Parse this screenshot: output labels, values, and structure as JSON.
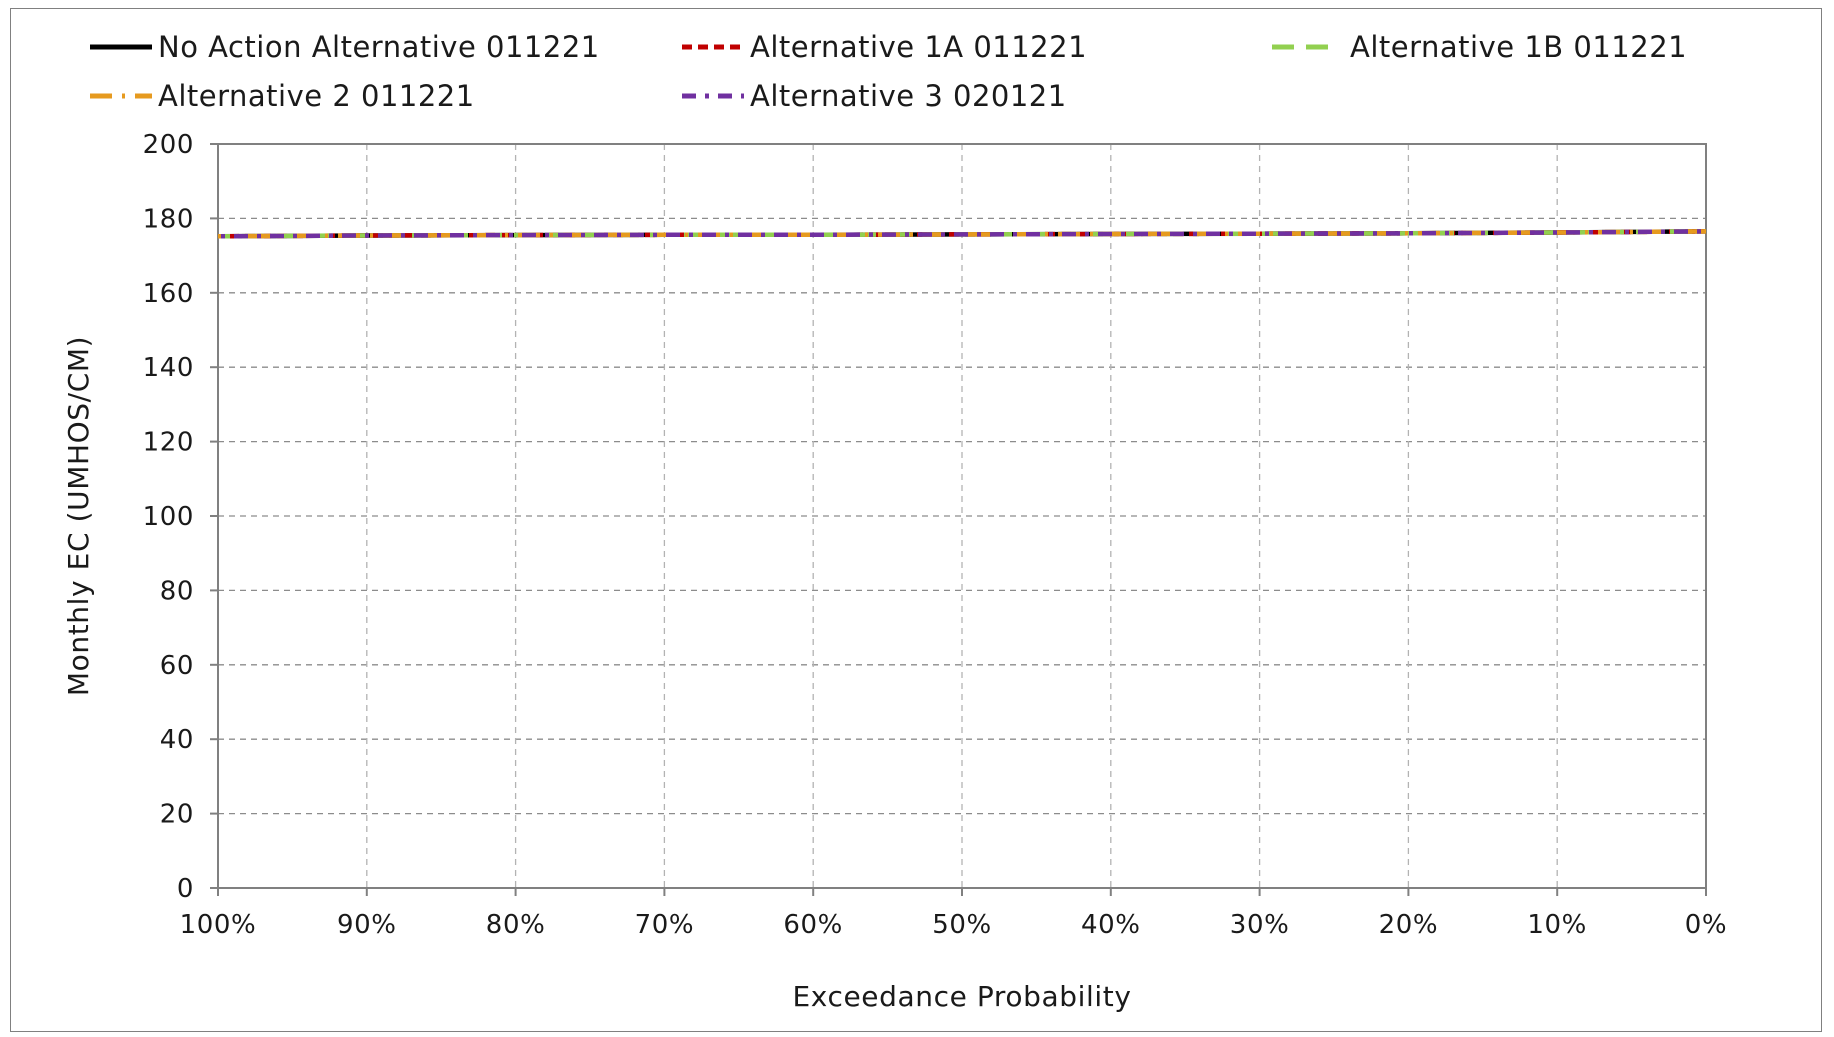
{
  "chart_data": {
    "type": "line",
    "title": "",
    "xlabel": "Exceedance Probability",
    "ylabel": "Monthly EC (UMHOS/CM)",
    "xlim": [
      100,
      0
    ],
    "ylim": [
      0,
      200
    ],
    "x_ticks": [
      "100%",
      "90%",
      "80%",
      "70%",
      "60%",
      "50%",
      "40%",
      "30%",
      "20%",
      "10%",
      "0%"
    ],
    "y_ticks": [
      "0",
      "20",
      "40",
      "60",
      "80",
      "100",
      "120",
      "140",
      "160",
      "180",
      "200"
    ],
    "grid": true,
    "legend_position": "top",
    "x": [
      100,
      90,
      80,
      70,
      60,
      50,
      40,
      30,
      20,
      10,
      0
    ],
    "series": [
      {
        "name": "No Action Alternative 011221",
        "color": "#000000",
        "dash": "solid",
        "values": [
          175.2,
          175.4,
          175.5,
          175.6,
          175.6,
          175.7,
          175.8,
          175.9,
          176.0,
          176.2,
          176.5
        ]
      },
      {
        "name": "Alternative 1A 011221",
        "color": "#c00000",
        "dash": "dashed",
        "values": [
          175.2,
          175.4,
          175.5,
          175.6,
          175.6,
          175.7,
          175.8,
          175.9,
          176.0,
          176.2,
          176.5
        ]
      },
      {
        "name": "Alternative 1B 011221",
        "color": "#92d050",
        "dash": "longdash",
        "values": [
          175.2,
          175.4,
          175.5,
          175.6,
          175.6,
          175.7,
          175.8,
          175.9,
          176.0,
          176.2,
          176.5
        ]
      },
      {
        "name": "Alternative 2 011221",
        "color": "#e69a1f",
        "dash": "longdashdot",
        "values": [
          175.2,
          175.4,
          175.5,
          175.6,
          175.6,
          175.7,
          175.8,
          175.9,
          176.0,
          176.2,
          176.5
        ]
      },
      {
        "name": "Alternative 3 020121",
        "color": "#7030a0",
        "dash": "dashdot",
        "values": [
          175.2,
          175.4,
          175.5,
          175.6,
          175.6,
          175.7,
          175.8,
          175.9,
          176.0,
          176.2,
          176.5
        ]
      }
    ]
  }
}
